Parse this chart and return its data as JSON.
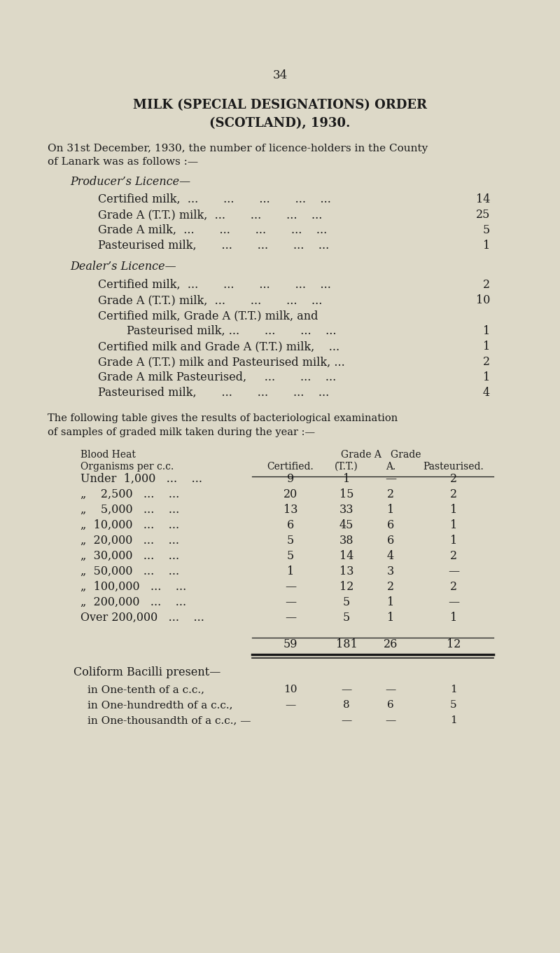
{
  "page_number": "34",
  "title_line1": "MILK (SPECIAL DESIGNATIONS) ORDER",
  "title_line2": "(SCOTLAND), 1930.",
  "background_color": "#ddd9c8",
  "text_color": "#1a1a1a",
  "producer_licence_label": "Producer’s Licence—",
  "producer_items": [
    [
      "Certified milk,  ...       ...       ...       ...    ...  ",
      "14"
    ],
    [
      "Grade A (T.T.) milk,  ...       ...       ...    ...  ",
      "25"
    ],
    [
      "Grade A milk,  ...       ...       ...       ...    ...  ",
      "5"
    ],
    [
      "Pasteurised milk,       ...       ...       ...    ...  ",
      "1"
    ]
  ],
  "dealer_licence_label": "Dealer’s Licence—",
  "dealer_items": [
    [
      "Certified milk,  ...       ...       ...       ...    ...  ",
      "2"
    ],
    [
      "Grade A (T.T.) milk,  ...       ...       ...    ...  ",
      "10"
    ],
    [
      "Certified milk, Grade A (T.T.) milk, and",
      ""
    ],
    [
      "        Pasteurised milk, ...       ...       ...    ...  ",
      "1"
    ],
    [
      "Certified milk and Grade A (T.T.) milk,    ...  ",
      "1"
    ],
    [
      "Grade A (T.T.) milk and Pasteurised milk, ...  ",
      "2"
    ],
    [
      "Grade A milk Pasteurised,     ...       ...    ...  ",
      "1"
    ],
    [
      "Pasteurised milk,       ...       ...       ...    ...  ",
      "4"
    ]
  ],
  "table_rows": [
    [
      "Under  1,000   ...    ...",
      "9",
      "1",
      "—",
      "2"
    ],
    [
      "„    2,500   ...    ...",
      "20",
      "15",
      "2",
      "2"
    ],
    [
      "„    5,000   ...    ...",
      "13",
      "33",
      "1",
      "1"
    ],
    [
      "„  10,000   ...    ...",
      "6",
      "45",
      "6",
      "1"
    ],
    [
      "„  20,000   ...    ...",
      "5",
      "38",
      "6",
      "1"
    ],
    [
      "„  30,000   ...    ...",
      "5",
      "14",
      "4",
      "2"
    ],
    [
      "„  50,000   ...    ...",
      "1",
      "13",
      "3",
      "—"
    ],
    [
      "„  100,000   ...    ...",
      "—",
      "12",
      "2",
      "2"
    ],
    [
      "„  200,000   ...    ...",
      "—",
      "5",
      "1",
      "—"
    ],
    [
      "Over 200,000   ...    ...",
      "—",
      "5",
      "1",
      "1"
    ]
  ],
  "table_totals": [
    "59",
    "181",
    "26",
    "12"
  ],
  "coliform_label": "Coliform Bacilli present—",
  "coliform_items": [
    [
      "in One-tenth of a c.c.,",
      "10",
      "—",
      "—",
      "1"
    ],
    [
      "in One-hundredth of a c.c.,",
      "—",
      "8",
      "6",
      "5"
    ],
    [
      "in One-thousandth of a c.c., —",
      "—",
      "—",
      "—",
      "1"
    ]
  ]
}
